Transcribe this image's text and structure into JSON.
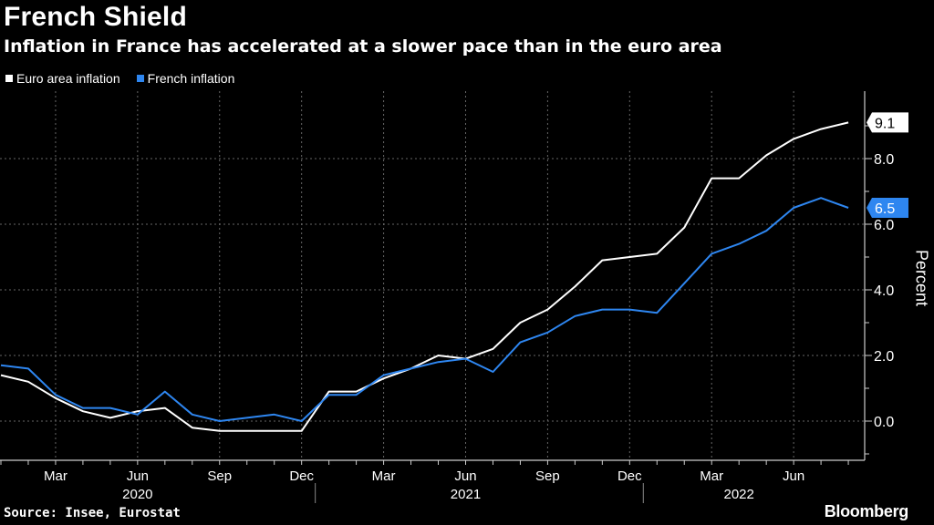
{
  "header": {
    "title": "French Shield",
    "subtitle": "Inflation in France has accelerated at a slower pace than in the euro area"
  },
  "legend": [
    {
      "label": "Euro area inflation",
      "color": "#ffffff"
    },
    {
      "label": "French inflation",
      "color": "#2e86f0"
    }
  ],
  "footer": {
    "source": "Source: Insee, Eurostat",
    "brand": "Bloomberg"
  },
  "chart_data": {
    "type": "line",
    "title": "French Shield",
    "subtitle": "Inflation in France has accelerated at a slower pace than in the euro area",
    "ylabel": "Percent",
    "ylim": [
      -1.2,
      10.0
    ],
    "yticks": [
      0,
      2,
      4,
      6,
      8
    ],
    "ytick_labels": [
      "0.0",
      "2.0",
      "4.0",
      "6.0",
      "8.0"
    ],
    "x_start": "2020-01",
    "x_end": "2022-08",
    "x": [
      "2020-01",
      "2020-02",
      "2020-03",
      "2020-04",
      "2020-05",
      "2020-06",
      "2020-07",
      "2020-08",
      "2020-09",
      "2020-10",
      "2020-11",
      "2020-12",
      "2021-01",
      "2021-02",
      "2021-03",
      "2021-04",
      "2021-05",
      "2021-06",
      "2021-07",
      "2021-08",
      "2021-09",
      "2021-10",
      "2021-11",
      "2021-12",
      "2022-01",
      "2022-02",
      "2022-03",
      "2022-04",
      "2022-05",
      "2022-06",
      "2022-07",
      "2022-08"
    ],
    "month_ticks": [
      {
        "label": "Mar",
        "x": "2020-03"
      },
      {
        "label": "Jun",
        "x": "2020-06"
      },
      {
        "label": "Sep",
        "x": "2020-09"
      },
      {
        "label": "Dec",
        "x": "2020-12"
      },
      {
        "label": "Mar",
        "x": "2021-03"
      },
      {
        "label": "Jun",
        "x": "2021-06"
      },
      {
        "label": "Sep",
        "x": "2021-09"
      },
      {
        "label": "Dec",
        "x": "2021-12"
      },
      {
        "label": "Mar",
        "x": "2022-03"
      },
      {
        "label": "Jun",
        "x": "2022-06"
      }
    ],
    "year_labels": [
      {
        "label": "2020",
        "x": "2020-06"
      },
      {
        "label": "2021",
        "x": "2021-06"
      },
      {
        "label": "2022",
        "x": "2022-04"
      }
    ],
    "grid": true,
    "legend_position": "top-left",
    "series": [
      {
        "name": "Euro area inflation",
        "color": "#ffffff",
        "values": [
          1.4,
          1.2,
          0.7,
          0.3,
          0.1,
          0.3,
          0.4,
          -0.2,
          -0.3,
          -0.3,
          -0.3,
          -0.3,
          0.9,
          0.9,
          1.3,
          1.6,
          2.0,
          1.9,
          2.2,
          3.0,
          3.4,
          4.1,
          4.9,
          5.0,
          5.1,
          5.9,
          7.4,
          7.4,
          8.1,
          8.6,
          8.9,
          9.1
        ],
        "last_label": "9.1"
      },
      {
        "name": "French inflation",
        "color": "#2e86f0",
        "values": [
          1.7,
          1.6,
          0.8,
          0.4,
          0.4,
          0.2,
          0.9,
          0.2,
          0.0,
          0.1,
          0.2,
          0.0,
          0.8,
          0.8,
          1.4,
          1.6,
          1.8,
          1.9,
          1.5,
          2.4,
          2.7,
          3.2,
          3.4,
          3.4,
          3.3,
          4.2,
          5.1,
          5.4,
          5.8,
          6.5,
          6.8,
          6.5
        ],
        "last_label": "6.5"
      }
    ]
  }
}
